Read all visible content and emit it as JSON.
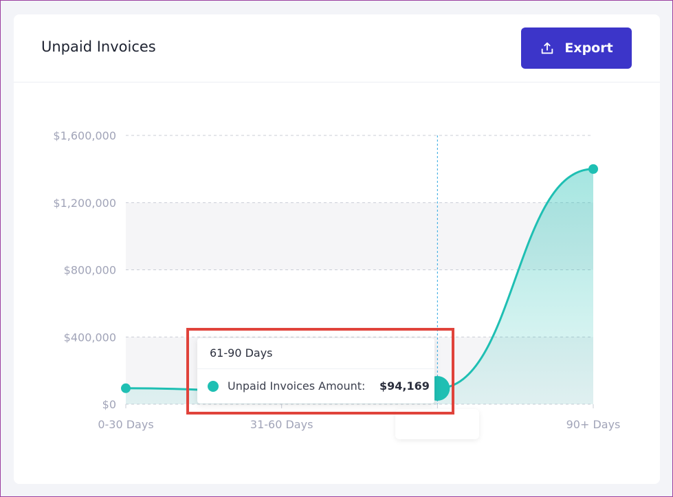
{
  "card": {
    "title": "Unpaid Invoices",
    "export_label": "Export"
  },
  "tooltip": {
    "title": "61-90 Days",
    "series_label": "Unpaid Invoices Amount:",
    "value": "$94,169"
  },
  "colors": {
    "accent": "#1fbfb3",
    "button": "#3c35c9",
    "highlight": "#e0433b"
  },
  "chart_data": {
    "type": "area",
    "categories": [
      "0-30 Days",
      "31-60 Days",
      "61-90 Days",
      "90+ Days"
    ],
    "series": [
      {
        "name": "Unpaid Invoices Amount",
        "values": [
          95000,
          75000,
          94169,
          1400000
        ]
      }
    ],
    "y_ticks": [
      "$0",
      "$400,000",
      "$800,000",
      "$1,200,000",
      "$1,600,000"
    ],
    "ylim": [
      0,
      1600000
    ],
    "grid": true,
    "hovered_category": "61-90 Days"
  }
}
